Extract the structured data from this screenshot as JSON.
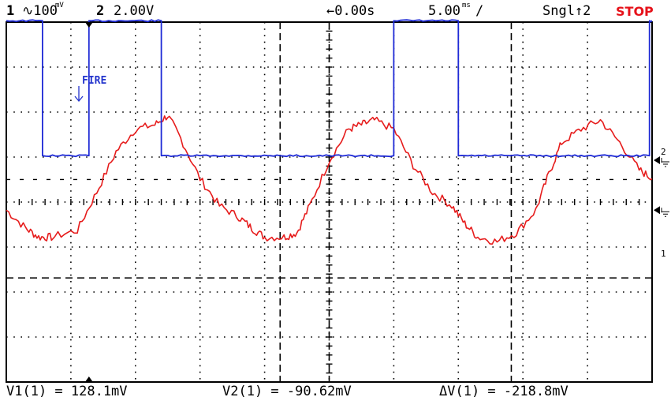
{
  "status_bar": {
    "ch1_num": "1",
    "ch1_scale": "∿100",
    "ch1_unit": "mV",
    "ch2_num": "2",
    "ch2_scale": "2.00V",
    "delay": "←0.00s",
    "timebase": "5.00",
    "timebase_unit": "ms",
    "trigger": "Sngl↑2",
    "run_state": "STOP"
  },
  "markers": {
    "ch2_ground_label": "2",
    "ch1_ground_label": "1",
    "fire_label": "FIRE"
  },
  "measurements": {
    "v1": "V1(1) = 128.1mV",
    "v2": "V2(1) = -90.62mV",
    "delta": "ΔV(1) = -218.8mV"
  },
  "colors": {
    "ch1": "#e61c1c",
    "ch2": "#1e2ad6",
    "stop": "#e6121a",
    "fire": "#2233cc"
  },
  "chart_data": {
    "type": "line",
    "title": "",
    "xlabel": "",
    "ylabel": "",
    "x_unit": "ms",
    "xlim": [
      -25,
      25
    ],
    "grid": true,
    "series": [
      {
        "name": "1",
        "unit": "mV",
        "x": [
          -25,
          -23.5,
          -22.5,
          -21.5,
          -19.5,
          -18,
          -16.5,
          -15,
          -13.5,
          -12.5,
          -11.5,
          -10,
          -8.5,
          -7,
          -6,
          -5,
          -3.5,
          -2.5,
          -1.5,
          0,
          1.5,
          2.5,
          3.5,
          5,
          6.5,
          8,
          9.5,
          10.5,
          11.5,
          13,
          14.5,
          16,
          17,
          18,
          19.5,
          21,
          22.5,
          24,
          25
        ],
        "y": [
          60,
          20,
          0,
          0,
          15,
          100,
          190,
          240,
          250,
          270,
          220,
          130,
          70,
          45,
          20,
          0,
          0,
          10,
          70,
          170,
          240,
          250,
          260,
          240,
          160,
          100,
          70,
          30,
          0,
          -10,
          10,
          60,
          140,
          210,
          240,
          260,
          210,
          150,
          130
        ]
      },
      {
        "name": "2",
        "unit": "V",
        "x": [
          -25,
          -22.2,
          -22.2,
          -18.6,
          -18.6,
          -13.0,
          -13.0,
          -8.0,
          -8.0,
          -3.8,
          -3.8,
          0.0,
          0.0,
          5.0,
          5.0,
          10.0,
          10.0,
          14.1,
          14.1,
          20.0,
          20.0,
          21.6,
          21.6,
          24.8,
          24.8,
          25
        ],
        "y": [
          6.2,
          6.2,
          0.2,
          0.2,
          6.2,
          6.2,
          0.2,
          0.2,
          0.2,
          0.2,
          0.2,
          0.2,
          0.2,
          0.2,
          6.2,
          6.2,
          0.2,
          0.2,
          0.2,
          0.2,
          0.2,
          0.2,
          0.2,
          0.2,
          6.2,
          6.2
        ]
      }
    ],
    "cursors": {
      "v1_mV": 128.1,
      "v2_mV": -90.62
    }
  }
}
